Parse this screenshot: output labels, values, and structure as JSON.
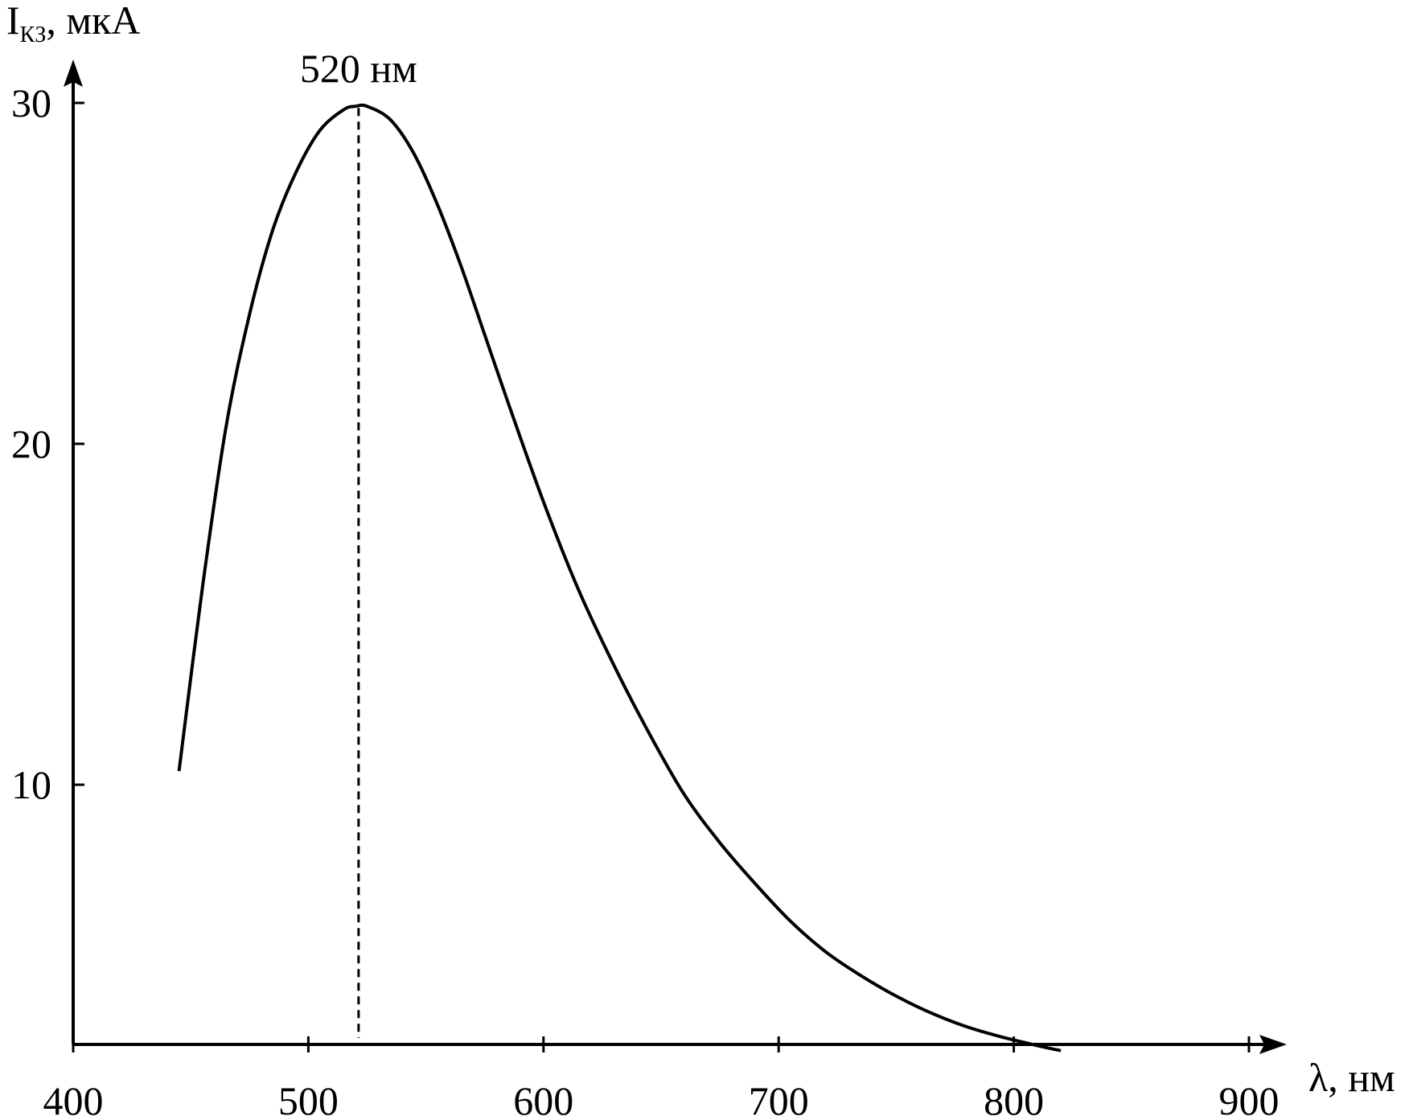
{
  "chart_data": {
    "type": "line",
    "title": "",
    "xlabel": {
      "main": "λ, нм"
    },
    "ylabel": {
      "main": "I",
      "subscript": "КЗ",
      "suffix": ", мкА"
    },
    "xlim": [
      400,
      900
    ],
    "ylim": [
      2.3,
      30.5
    ],
    "x_ticks": [
      400,
      500,
      600,
      700,
      800,
      900
    ],
    "x_tick_labels": [
      "400",
      "500",
      "600",
      "700",
      "800",
      "900"
    ],
    "y_ticks": [
      10,
      20,
      30
    ],
    "y_tick_labels": [
      "10",
      "20",
      "30"
    ],
    "grid": false,
    "legend": "none",
    "line_color": "#000000",
    "series": [
      {
        "x": [
          445,
          455,
          465,
          475,
          485,
          495,
          505,
          515,
          520,
          525,
          535,
          545,
          555,
          565,
          575,
          585,
          600,
          615,
          630,
          645,
          660,
          675,
          690,
          705,
          720,
          735,
          750,
          765,
          780,
          795,
          810,
          820
        ],
        "values": [
          10.4,
          15.8,
          20.5,
          23.8,
          26.3,
          28.0,
          29.2,
          29.8,
          29.9,
          29.9,
          29.5,
          28.5,
          27.0,
          25.2,
          23.2,
          21.2,
          18.3,
          15.7,
          13.5,
          11.5,
          9.7,
          8.3,
          7.1,
          6.0,
          5.1,
          4.4,
          3.8,
          3.3,
          2.9,
          2.6,
          2.35,
          2.2
        ]
      }
    ],
    "annotations": [
      {
        "label": "520 нм",
        "x": 520,
        "style": "dashed-vertical"
      }
    ]
  }
}
